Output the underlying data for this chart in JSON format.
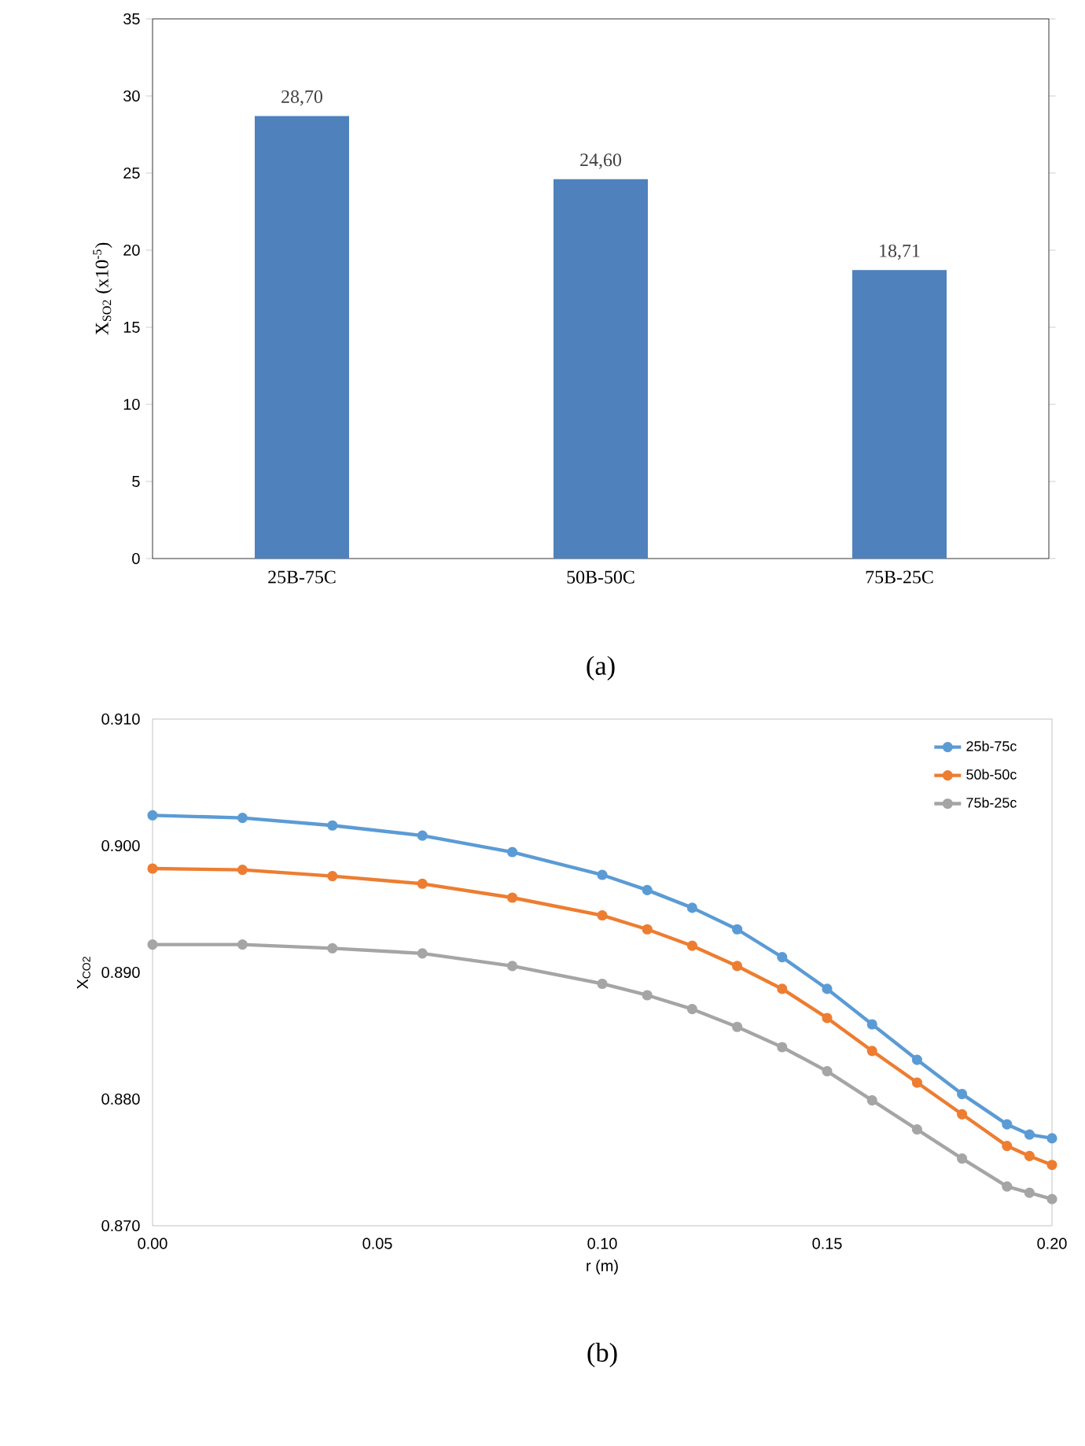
{
  "chart_data": [
    {
      "type": "bar",
      "ylabel": "X$_{SO2}$ (x10$^{-5}$)",
      "categories": [
        "25B-75C",
        "50B-50C",
        "75B-25C"
      ],
      "values": [
        28.7,
        24.6,
        18.71
      ],
      "value_labels": [
        "28,70",
        "24,60",
        "18,71"
      ],
      "color": "#4f81bd",
      "ylim": [
        0,
        35
      ],
      "yticks": [
        0,
        5,
        10,
        15,
        20,
        25,
        30,
        35
      ],
      "grid": false,
      "legend": false,
      "annotations": [
        "(a)"
      ]
    },
    {
      "type": "line",
      "xlabel": "r (m)",
      "ylabel": "X$_{CO2}$",
      "x": [
        0,
        0.02,
        0.04,
        0.06,
        0.08,
        0.1,
        0.11,
        0.12,
        0.13,
        0.14,
        0.15,
        0.16,
        0.17,
        0.18,
        0.19,
        0.195,
        0.2
      ],
      "series": [
        {
          "name": "25b-75c",
          "color": "#5b9bd5",
          "values": [
            0.9024,
            0.9022,
            0.9016,
            0.9008,
            0.8995,
            0.8977,
            0.8965,
            0.8951,
            0.8934,
            0.8912,
            0.8887,
            0.8859,
            0.8831,
            0.8804,
            0.878,
            0.8772,
            0.8769
          ]
        },
        {
          "name": "50b-50c",
          "color": "#ed7d31",
          "values": [
            0.8982,
            0.8981,
            0.8976,
            0.897,
            0.8959,
            0.8945,
            0.8934,
            0.8921,
            0.8905,
            0.8887,
            0.8864,
            0.8838,
            0.8813,
            0.8788,
            0.8763,
            0.8755,
            0.8748
          ]
        },
        {
          "name": "75b-25c",
          "color": "#a5a5a5",
          "values": [
            0.8922,
            0.8922,
            0.8919,
            0.8915,
            0.8905,
            0.8891,
            0.8882,
            0.8871,
            0.8857,
            0.8841,
            0.8822,
            0.8799,
            0.8776,
            0.8753,
            0.8731,
            0.8726,
            0.8721
          ]
        }
      ],
      "xlim": [
        0,
        0.2
      ],
      "xticks": [
        {
          "value": 0,
          "label": "0.00"
        },
        {
          "value": 0.05,
          "label": "0.05"
        },
        {
          "value": 0.1,
          "label": "0.10"
        },
        {
          "value": 0.15,
          "label": "0.15"
        },
        {
          "value": 0.2,
          "label": "0.20"
        }
      ],
      "ylim": [
        0.87,
        0.91
      ],
      "yticks": [
        {
          "value": 0.87,
          "label": "0.870"
        },
        {
          "value": 0.88,
          "label": "0.880"
        },
        {
          "value": 0.89,
          "label": "0.890"
        },
        {
          "value": 0.9,
          "label": "0.900"
        },
        {
          "value": 0.91,
          "label": "0.910"
        }
      ],
      "grid": false,
      "legend": "top right",
      "marker": "circle",
      "line_style": "solid",
      "annotations": [
        "(b)"
      ]
    }
  ]
}
